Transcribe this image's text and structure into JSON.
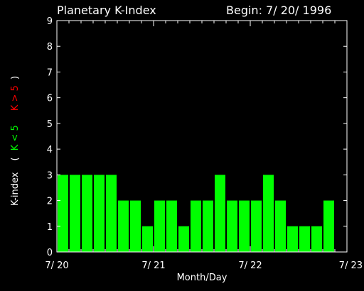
{
  "chart_data": {
    "type": "bar",
    "title": "Planetary K-Index",
    "begin_label": "Begin: 7/ 20/ 1996",
    "xlabel": "Month/Day",
    "ylabel": {
      "prefix": "K-index",
      "open": "(",
      "low_part": "K < 5",
      "high_part": "K > 5",
      "close": ")"
    },
    "ylim": [
      0,
      9
    ],
    "yticks": [
      0,
      1,
      2,
      3,
      4,
      5,
      6,
      7,
      8,
      9
    ],
    "x_tick_labels": [
      "7/ 20",
      "7/ 21",
      "7/ 22",
      "7/ 23"
    ],
    "values": [
      3,
      3,
      3,
      3,
      3,
      2,
      2,
      1,
      2,
      2,
      1,
      2,
      2,
      3,
      2,
      2,
      2,
      3,
      2,
      1,
      1,
      1,
      2
    ],
    "bins_per_day": 8,
    "days": 3,
    "colors": {
      "background": "#000000",
      "axes": "#ffffff",
      "bar_low": "#00ff00",
      "bar_high": "#ff0000",
      "label_low": "#00ff00",
      "label_high": "#ff0000"
    }
  }
}
